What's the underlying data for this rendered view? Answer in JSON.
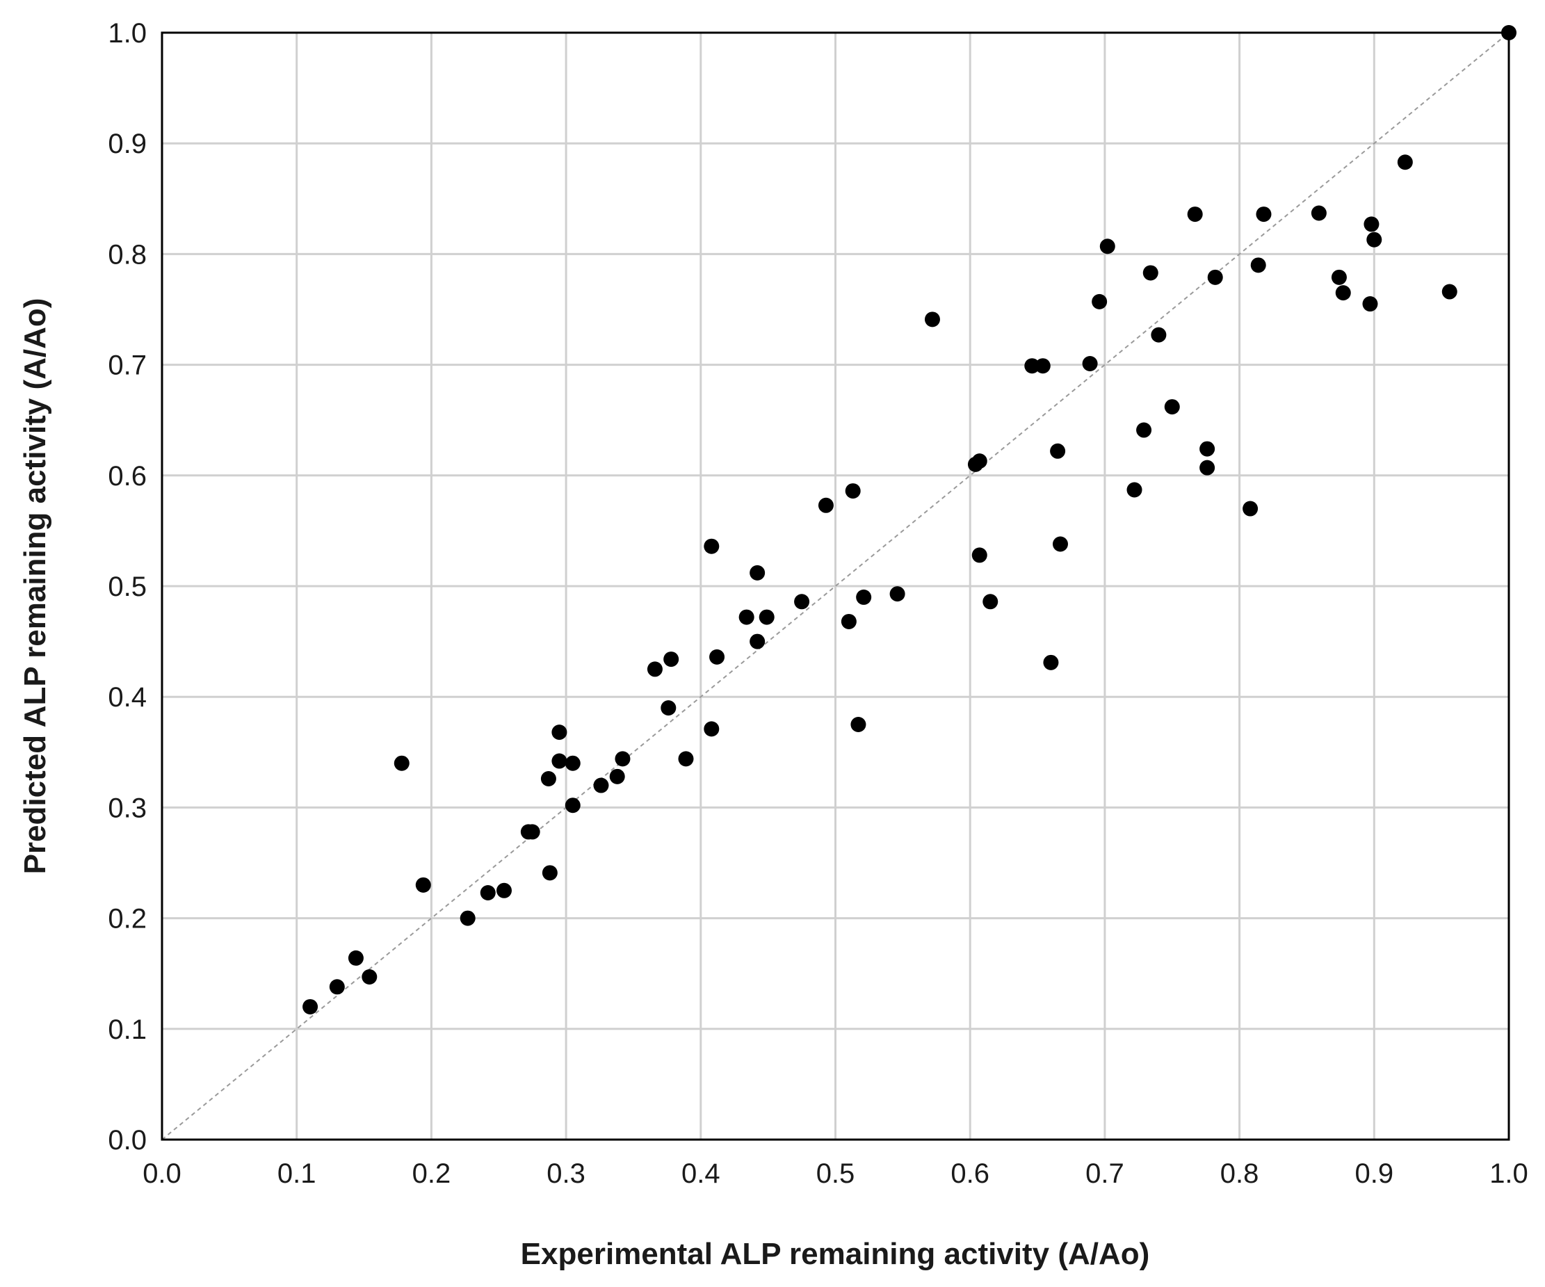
{
  "chart_data": {
    "type": "scatter",
    "title": "",
    "xlabel": "Experimental ALP remaining activity (A/Ao)",
    "ylabel": "Predicted ALP remaining activity (A/Ao)",
    "xlim": [
      0,
      1
    ],
    "ylim": [
      0,
      1
    ],
    "xticks": [
      "0.0",
      "0.1",
      "0.2",
      "0.3",
      "0.4",
      "0.5",
      "0.6",
      "0.7",
      "0.8",
      "0.9",
      "1.0"
    ],
    "yticks": [
      "0.0",
      "0.1",
      "0.2",
      "0.3",
      "0.4",
      "0.5",
      "0.6",
      "0.7",
      "0.8",
      "0.9",
      "1.0"
    ],
    "grid": true,
    "reference_line": {
      "from": [
        0,
        0
      ],
      "to": [
        1,
        1
      ],
      "style": "dashed",
      "color": "#9a9a9a"
    },
    "point_color": "#000000",
    "points": [
      [
        0.11,
        0.12
      ],
      [
        0.13,
        0.138
      ],
      [
        0.144,
        0.164
      ],
      [
        0.154,
        0.147
      ],
      [
        0.178,
        0.34
      ],
      [
        0.194,
        0.23
      ],
      [
        0.227,
        0.2
      ],
      [
        0.242,
        0.223
      ],
      [
        0.254,
        0.225
      ],
      [
        0.272,
        0.278
      ],
      [
        0.275,
        0.278
      ],
      [
        0.287,
        0.326
      ],
      [
        0.288,
        0.241
      ],
      [
        0.295,
        0.368
      ],
      [
        0.295,
        0.342
      ],
      [
        0.305,
        0.34
      ],
      [
        0.305,
        0.302
      ],
      [
        0.326,
        0.32
      ],
      [
        0.338,
        0.328
      ],
      [
        0.342,
        0.344
      ],
      [
        0.366,
        0.425
      ],
      [
        0.376,
        0.39
      ],
      [
        0.378,
        0.434
      ],
      [
        0.389,
        0.344
      ],
      [
        0.408,
        0.536
      ],
      [
        0.408,
        0.371
      ],
      [
        0.412,
        0.436
      ],
      [
        0.434,
        0.472
      ],
      [
        0.442,
        0.512
      ],
      [
        0.442,
        0.45
      ],
      [
        0.449,
        0.472
      ],
      [
        0.475,
        0.486
      ],
      [
        0.493,
        0.573
      ],
      [
        0.51,
        0.468
      ],
      [
        0.513,
        0.586
      ],
      [
        0.517,
        0.375
      ],
      [
        0.521,
        0.49
      ],
      [
        0.546,
        0.493
      ],
      [
        0.572,
        0.741
      ],
      [
        0.604,
        0.61
      ],
      [
        0.607,
        0.613
      ],
      [
        0.607,
        0.528
      ],
      [
        0.615,
        0.486
      ],
      [
        0.646,
        0.699
      ],
      [
        0.654,
        0.699
      ],
      [
        0.66,
        0.431
      ],
      [
        0.665,
        0.622
      ],
      [
        0.667,
        0.538
      ],
      [
        0.689,
        0.701
      ],
      [
        0.696,
        0.757
      ],
      [
        0.702,
        0.807
      ],
      [
        0.722,
        0.587
      ],
      [
        0.729,
        0.641
      ],
      [
        0.734,
        0.783
      ],
      [
        0.74,
        0.727
      ],
      [
        0.75,
        0.662
      ],
      [
        0.767,
        0.836
      ],
      [
        0.776,
        0.624
      ],
      [
        0.776,
        0.607
      ],
      [
        0.782,
        0.779
      ],
      [
        0.808,
        0.57
      ],
      [
        0.814,
        0.79
      ],
      [
        0.818,
        0.836
      ],
      [
        0.859,
        0.837
      ],
      [
        0.874,
        0.779
      ],
      [
        0.877,
        0.765
      ],
      [
        0.897,
        0.755
      ],
      [
        0.898,
        0.827
      ],
      [
        0.9,
        0.813
      ],
      [
        0.923,
        0.883
      ],
      [
        0.956,
        0.766
      ],
      [
        1.0,
        1.0
      ]
    ]
  }
}
